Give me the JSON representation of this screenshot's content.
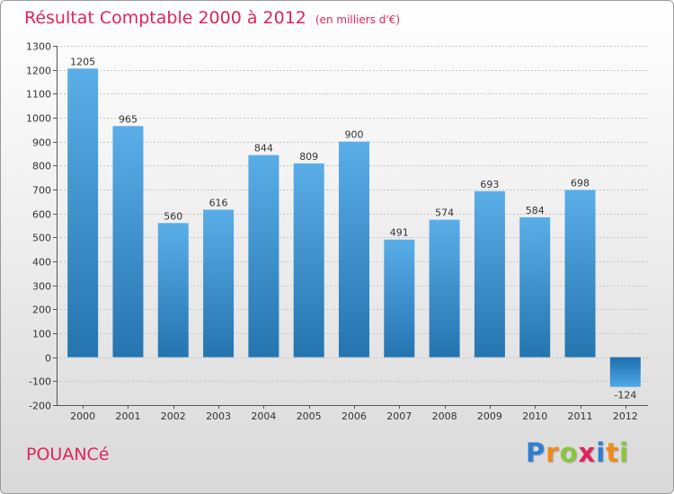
{
  "colors": {
    "accent": "#e0245b",
    "bar_light": "#5aaee8",
    "bar_dark": "#2474b0",
    "neg_light": "#1e6fae",
    "neg_dark": "#4fa8e6"
  },
  "chart_data": {
    "type": "bar",
    "title": "Résultat Comptable 2000 à 2012",
    "subtitle": "(en milliers d'€)",
    "xlabel": "",
    "ylabel": "",
    "categories": [
      "2000",
      "2001",
      "2002",
      "2003",
      "2004",
      "2005",
      "2006",
      "2007",
      "2008",
      "2009",
      "2010",
      "2011",
      "2012"
    ],
    "values": [
      1205,
      965,
      560,
      616,
      844,
      809,
      900,
      491,
      574,
      693,
      584,
      698,
      -124
    ],
    "value_labels": [
      "1205",
      "965",
      "560",
      "616",
      "844",
      "809",
      "900",
      "491",
      "574",
      "693",
      "584",
      "698",
      "-124"
    ],
    "ylim": [
      -200,
      1300
    ],
    "yticks": [
      -200,
      -100,
      0,
      100,
      200,
      300,
      400,
      500,
      600,
      700,
      800,
      900,
      1000,
      1100,
      1200,
      1300
    ],
    "grid": true
  },
  "footer": {
    "commune": "POUANCé",
    "brand_letters": [
      {
        "ch": "P",
        "color": "#2f7fd1"
      },
      {
        "ch": "r",
        "color": "#f28a1a"
      },
      {
        "ch": "o",
        "color": "#8cc63f"
      },
      {
        "ch": "x",
        "color": "#e0245b"
      },
      {
        "ch": "i",
        "color": "#2f7fd1"
      },
      {
        "ch": "t",
        "color": "#f28a1a"
      },
      {
        "ch": "i",
        "color": "#8cc63f"
      }
    ]
  }
}
